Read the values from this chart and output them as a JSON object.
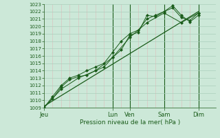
{
  "xlabel": "Pression niveau de la mer( hPa )",
  "bg_color": "#cce8d8",
  "grid_major_color": "#aacfbc",
  "grid_minor_color": "#ddbbbb",
  "line_color": "#1a5c1a",
  "marker_color": "#1a5c1a",
  "ylim": [
    1009,
    1023
  ],
  "yticks": [
    1009,
    1010,
    1011,
    1012,
    1013,
    1014,
    1015,
    1016,
    1017,
    1018,
    1019,
    1020,
    1021,
    1022,
    1023
  ],
  "day_labels": [
    "Jeu",
    "Lun",
    "Ven",
    "Sam",
    "Dim"
  ],
  "day_positions": [
    0,
    36,
    45,
    63,
    81
  ],
  "xlim": [
    0,
    90
  ],
  "series1_x": [
    0,
    4.5,
    9,
    13.5,
    18,
    22.5,
    27,
    31.5,
    36,
    40.5,
    45,
    49.5,
    54,
    58.5,
    63,
    67.5,
    72,
    76.5,
    81
  ],
  "series1_y": [
    1009.0,
    1010.2,
    1011.8,
    1012.8,
    1013.2,
    1013.4,
    1014.0,
    1014.5,
    1015.8,
    1016.8,
    1018.8,
    1019.2,
    1021.5,
    1021.3,
    1022.0,
    1022.5,
    1021.2,
    1020.8,
    1021.8
  ],
  "series2_x": [
    0,
    4.5,
    9,
    13.5,
    18,
    22.5,
    27,
    31.5,
    36,
    40.5,
    45,
    49.5,
    54,
    58.5,
    63,
    67.5,
    72,
    76.5,
    81
  ],
  "series2_y": [
    1009.0,
    1010.5,
    1012.0,
    1013.0,
    1013.4,
    1014.0,
    1014.5,
    1015.0,
    1016.5,
    1018.0,
    1019.0,
    1019.5,
    1021.0,
    1021.5,
    1022.0,
    1022.8,
    1021.5,
    1020.6,
    1021.5
  ],
  "series3_x": [
    0,
    9,
    18,
    27,
    36,
    45,
    54,
    63,
    72,
    81
  ],
  "series3_y": [
    1009.0,
    1011.5,
    1013.0,
    1014.0,
    1015.8,
    1018.5,
    1020.5,
    1021.8,
    1020.5,
    1021.8
  ],
  "trend_x": [
    0,
    81
  ],
  "trend_y": [
    1009.2,
    1022.0
  ],
  "vlines": [
    36,
    45,
    63,
    81
  ]
}
